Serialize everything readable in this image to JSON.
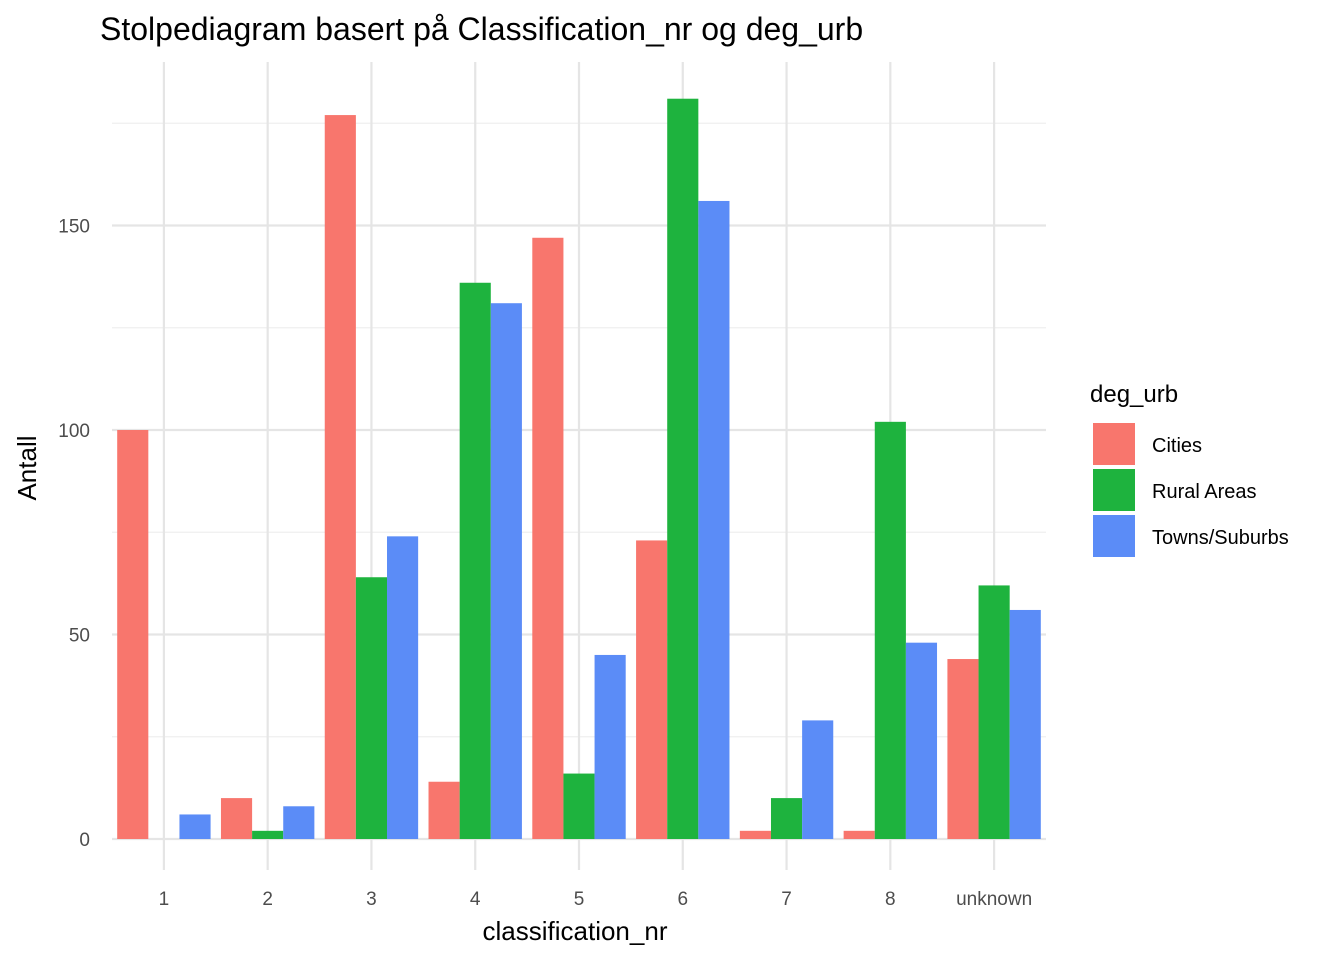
{
  "chart_data": {
    "type": "bar",
    "title": "Stolpediagram basert på Classification_nr og deg_urb",
    "xlabel": "classification_nr",
    "ylabel": "Antall",
    "categories": [
      "1",
      "2",
      "3",
      "4",
      "5",
      "6",
      "7",
      "8",
      "unknown"
    ],
    "yticks": [
      0,
      50,
      100,
      150
    ],
    "ylim": [
      -7.5,
      189
    ],
    "grid": true,
    "legend": {
      "title": "deg_urb",
      "placement": "right"
    },
    "series": [
      {
        "name": "Cities",
        "color": "#F8766D",
        "values": [
          100,
          10,
          177,
          14,
          147,
          73,
          2,
          2,
          44
        ]
      },
      {
        "name": "Rural Areas",
        "color": "#1EB33E",
        "values": [
          0,
          2,
          64,
          136,
          16,
          181,
          10,
          102,
          62
        ]
      },
      {
        "name": "Towns/Suburbs",
        "color": "#5B8CF7",
        "values": [
          6,
          8,
          74,
          131,
          45,
          156,
          29,
          48,
          56
        ]
      }
    ]
  }
}
